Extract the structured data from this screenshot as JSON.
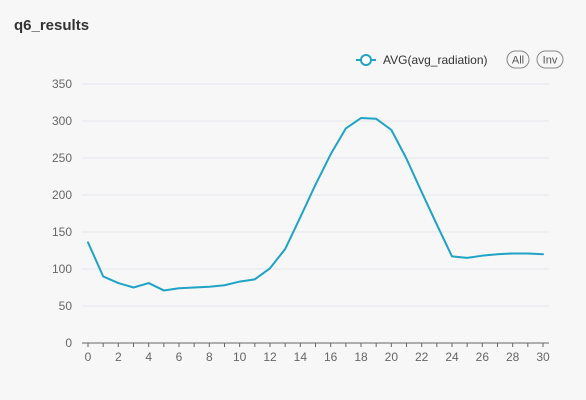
{
  "header": {
    "title": "q6_results"
  },
  "legend": {
    "series_label": "AVG(avg_radiation)",
    "all_label": "All",
    "inv_label": "Inv"
  },
  "colors": {
    "series": "#1fa3c6",
    "grid": "#e4e7ee",
    "axis": "#666666",
    "background": "#f7f7f7"
  },
  "chart_data": {
    "type": "line",
    "title": "q6_results",
    "xlabel": "",
    "ylabel": "",
    "xlim": [
      0,
      30
    ],
    "ylim": [
      0,
      350
    ],
    "x_ticks": [
      0,
      2,
      4,
      6,
      8,
      10,
      12,
      14,
      16,
      18,
      20,
      22,
      24,
      26,
      28,
      30
    ],
    "y_ticks": [
      0,
      50,
      100,
      150,
      200,
      250,
      300,
      350
    ],
    "grid": true,
    "legend_position": "top-right",
    "series": [
      {
        "name": "AVG(avg_radiation)",
        "x": [
          0,
          1,
          2,
          3,
          4,
          5,
          6,
          7,
          8,
          9,
          10,
          11,
          12,
          13,
          14,
          15,
          16,
          17,
          18,
          19,
          20,
          21,
          22,
          23,
          24,
          25,
          26,
          27,
          28,
          29,
          30
        ],
        "y": [
          136,
          90,
          81,
          75,
          81,
          71,
          74,
          75,
          76,
          78,
          83,
          86,
          101,
          127,
          170,
          214,
          255,
          290,
          304,
          303,
          288,
          249,
          204,
          160,
          117,
          115,
          118,
          120,
          121,
          121,
          120
        ]
      }
    ]
  }
}
